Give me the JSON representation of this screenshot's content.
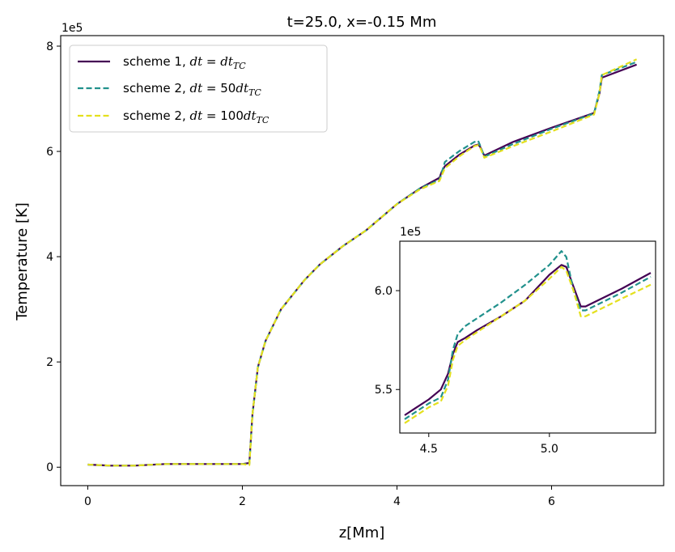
{
  "colors": {
    "scheme1": "#440154",
    "scheme2_50": "#21918c",
    "scheme2_100": "#e4e01e",
    "axes": "#000000",
    "background": "#ffffff"
  },
  "chart_data": [
    {
      "type": "line",
      "title": "t=25.0, x=-0.15 Mm",
      "xlabel": "z[Mm]",
      "ylabel": "Temperature [K]",
      "y_offset_text": "1e5",
      "xlim": [
        -0.35,
        7.45
      ],
      "ylim": [
        -0.35,
        8.2
      ],
      "x_ticks": [
        0,
        2,
        4,
        6
      ],
      "y_ticks": [
        0,
        2,
        4,
        6,
        8
      ],
      "grid": false,
      "legend_position": "upper-left",
      "legend": [
        {
          "prefix": "scheme 1, ",
          "math": "dt",
          "eq": " = ",
          "mathr": "dt",
          "sub": "TC",
          "coef": "",
          "style": "solid"
        },
        {
          "prefix": "scheme 2, ",
          "math": "dt",
          "eq": " = ",
          "mathr": "dt",
          "sub": "TC",
          "coef": "50",
          "style": "dashed"
        },
        {
          "prefix": "scheme 2, ",
          "math": "dt",
          "eq": " = ",
          "mathr": "dt",
          "sub": "TC",
          "coef": "100",
          "style": "dashed"
        }
      ],
      "series": [
        {
          "name": "scheme 1, dt = dt_TC",
          "x": [
            0,
            0.3,
            0.6,
            1.0,
            1.5,
            2.0,
            2.09,
            2.13,
            2.2,
            2.3,
            2.5,
            2.8,
            3.0,
            3.3,
            3.6,
            4.0,
            4.3,
            4.55,
            4.58,
            4.62,
            4.8,
            5.0,
            5.05,
            5.08,
            5.13,
            5.5,
            6.0,
            6.55,
            6.62,
            6.65,
            7.1
          ],
          "y": [
            0.05,
            0.03,
            0.03,
            0.06,
            0.06,
            0.06,
            0.08,
            1.0,
            1.9,
            2.4,
            3.0,
            3.55,
            3.85,
            4.2,
            4.5,
            5.0,
            5.3,
            5.5,
            5.62,
            5.72,
            5.93,
            6.11,
            6.13,
            6.08,
            5.92,
            6.18,
            6.45,
            6.73,
            7.1,
            7.4,
            7.65
          ]
        },
        {
          "name": "scheme 2, dt = 50dt_TC",
          "x": [
            0,
            0.3,
            0.6,
            1.0,
            1.5,
            2.0,
            2.09,
            2.13,
            2.2,
            2.3,
            2.5,
            2.8,
            3.0,
            3.3,
            3.6,
            4.0,
            4.3,
            4.55,
            4.58,
            4.62,
            4.8,
            5.0,
            5.05,
            5.08,
            5.13,
            5.5,
            6.0,
            6.55,
            6.62,
            6.65,
            7.1
          ],
          "y": [
            0.05,
            0.03,
            0.03,
            0.06,
            0.06,
            0.06,
            0.06,
            1.0,
            1.9,
            2.4,
            3.0,
            3.55,
            3.85,
            4.2,
            4.5,
            5.0,
            5.3,
            5.46,
            5.6,
            5.8,
            6.0,
            6.18,
            6.2,
            6.1,
            5.9,
            6.14,
            6.43,
            6.72,
            7.15,
            7.45,
            7.7
          ]
        },
        {
          "name": "scheme 2, dt = 100dt_TC",
          "x": [
            0,
            0.3,
            0.6,
            1.0,
            1.5,
            2.0,
            2.09,
            2.13,
            2.2,
            2.3,
            2.5,
            2.8,
            3.0,
            3.3,
            3.6,
            4.0,
            4.3,
            4.55,
            4.58,
            4.62,
            4.8,
            5.0,
            5.05,
            5.08,
            5.13,
            5.5,
            6.0,
            6.55,
            6.62,
            6.65,
            7.1
          ],
          "y": [
            0.05,
            0.03,
            0.03,
            0.06,
            0.06,
            0.06,
            0.04,
            1.0,
            1.9,
            2.4,
            3.0,
            3.55,
            3.85,
            4.2,
            4.5,
            5.0,
            5.28,
            5.44,
            5.55,
            5.68,
            5.9,
            6.1,
            6.12,
            6.06,
            5.88,
            6.1,
            6.38,
            6.7,
            7.1,
            7.45,
            7.75
          ]
        }
      ]
    },
    {
      "type": "line",
      "title": "inset",
      "y_offset_text": "1e5",
      "xlim": [
        4.38,
        5.44
      ],
      "ylim": [
        5.28,
        6.25
      ],
      "x_ticks": [
        4.5,
        5.0
      ],
      "x_tick_labels": [
        "4.5",
        "5.0"
      ],
      "y_ticks": [
        5.5,
        6.0
      ],
      "y_tick_labels": [
        "5.5",
        "6.0"
      ],
      "series": [
        {
          "name": "scheme 1, dt = dt_TC",
          "x": [
            4.4,
            4.45,
            4.5,
            4.55,
            4.58,
            4.6,
            4.62,
            4.65,
            4.7,
            4.8,
            4.9,
            5.0,
            5.05,
            5.07,
            5.1,
            5.13,
            5.15,
            5.2,
            5.3,
            5.42
          ],
          "y": [
            5.37,
            5.41,
            5.45,
            5.5,
            5.58,
            5.68,
            5.74,
            5.76,
            5.8,
            5.87,
            5.95,
            6.08,
            6.13,
            6.12,
            6.02,
            5.92,
            5.92,
            5.95,
            6.01,
            6.09
          ]
        },
        {
          "name": "scheme 2, dt = 50dt_TC",
          "x": [
            4.4,
            4.45,
            4.5,
            4.55,
            4.58,
            4.6,
            4.62,
            4.65,
            4.7,
            4.8,
            4.9,
            5.0,
            5.05,
            5.07,
            5.1,
            5.13,
            5.15,
            5.2,
            5.3,
            5.42
          ],
          "y": [
            5.35,
            5.39,
            5.43,
            5.46,
            5.55,
            5.7,
            5.78,
            5.82,
            5.86,
            5.94,
            6.03,
            6.13,
            6.2,
            6.17,
            6.0,
            5.9,
            5.9,
            5.93,
            5.99,
            6.07
          ]
        },
        {
          "name": "scheme 2, dt = 100dt_TC",
          "x": [
            4.4,
            4.45,
            4.5,
            4.55,
            4.58,
            4.6,
            4.62,
            4.65,
            4.7,
            4.8,
            4.9,
            5.0,
            5.05,
            5.07,
            5.1,
            5.13,
            5.15,
            5.2,
            5.3,
            5.42
          ],
          "y": [
            5.33,
            5.37,
            5.41,
            5.44,
            5.52,
            5.65,
            5.72,
            5.75,
            5.79,
            5.87,
            5.95,
            6.06,
            6.12,
            6.1,
            6.0,
            5.87,
            5.87,
            5.9,
            5.96,
            6.03
          ]
        }
      ]
    }
  ]
}
